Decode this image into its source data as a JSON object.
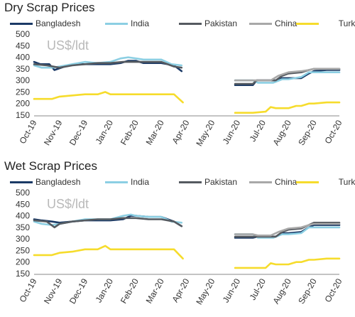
{
  "colors": {
    "Bangladesh": "#1b3a66",
    "India": "#8ccfe3",
    "Pakistan": "#555a60",
    "China": "#a8a8a8",
    "Turkey": "#f6dc2c",
    "axis": "#888888"
  },
  "chart_data": [
    {
      "type": "line",
      "title": "Dry Scrap Prices",
      "unit_label": "US$/ldt",
      "x_ticks": [
        "Oct-19",
        "Nov-19",
        "Dec-19",
        "Jan-20",
        "Feb-20",
        "Mar-20",
        "Apr-20",
        "May-20",
        "Jun-20",
        "Jul-20",
        "Aug-20",
        "Sep-20",
        "Oct-20"
      ],
      "ylim": [
        150,
        500
      ],
      "y_ticks": [
        150,
        200,
        250,
        300,
        350,
        400,
        450,
        500
      ],
      "grid": false,
      "legend": "top",
      "series": [
        {
          "name": "Bangladesh",
          "points": [
            [
              0,
              380
            ],
            [
              0.25,
              370
            ],
            [
              0.6,
              370
            ],
            [
              0.8,
              345
            ],
            [
              1.2,
              360
            ],
            [
              1.6,
              370
            ],
            [
              2,
              370
            ],
            [
              2.5,
              370
            ],
            [
              3,
              370
            ],
            [
              3.4,
              375
            ],
            [
              3.7,
              385
            ],
            [
              4,
              385
            ],
            [
              4.3,
              375
            ],
            [
              4.7,
              375
            ],
            [
              5,
              375
            ],
            [
              5.5,
              365
            ],
            [
              5.8,
              340
            ],
            null,
            [
              7.9,
              280
            ],
            [
              8.6,
              280
            ],
            [
              8.75,
              300
            ],
            [
              9.5,
              300
            ],
            [
              9.75,
              310
            ],
            [
              10,
              310
            ],
            [
              10.5,
              310
            ],
            [
              10.8,
              330
            ],
            [
              11,
              340
            ],
            [
              11.5,
              345
            ],
            [
              12,
              345
            ]
          ]
        },
        {
          "name": "India",
          "points": [
            [
              0,
              365
            ],
            [
              0.3,
              355
            ],
            [
              0.7,
              355
            ],
            [
              1,
              360
            ],
            [
              1.5,
              370
            ],
            [
              2,
              380
            ],
            [
              2.5,
              375
            ],
            [
              3,
              380
            ],
            [
              3.4,
              395
            ],
            [
              3.7,
              400
            ],
            [
              4,
              395
            ],
            [
              4.3,
              390
            ],
            [
              4.7,
              390
            ],
            [
              5,
              390
            ],
            [
              5.4,
              370
            ],
            [
              5.8,
              365
            ],
            null,
            [
              7.9,
              300
            ],
            [
              8.6,
              300
            ],
            [
              8.8,
              290
            ],
            [
              9.4,
              290
            ],
            [
              9.75,
              305
            ],
            [
              10,
              305
            ],
            [
              10.5,
              315
            ],
            [
              10.8,
              335
            ],
            [
              11,
              335
            ],
            [
              11.5,
              335
            ],
            [
              12,
              335
            ]
          ]
        },
        {
          "name": "Pakistan",
          "points": [
            [
              0,
              370
            ],
            [
              0.5,
              365
            ],
            [
              1,
              355
            ],
            [
              1.5,
              365
            ],
            [
              2,
              370
            ],
            [
              2.5,
              375
            ],
            [
              3,
              375
            ],
            [
              3.5,
              380
            ],
            [
              3.8,
              380
            ],
            [
              4,
              380
            ],
            [
              4.5,
              380
            ],
            [
              5,
              380
            ],
            [
              5.5,
              360
            ],
            [
              5.8,
              355
            ],
            null,
            [
              7.9,
              285
            ],
            [
              8.6,
              285
            ],
            [
              8.75,
              300
            ],
            [
              9.5,
              300
            ],
            [
              9.75,
              320
            ],
            [
              10,
              330
            ],
            [
              10.5,
              335
            ],
            [
              10.8,
              345
            ],
            [
              11,
              350
            ],
            [
              11.5,
              350
            ],
            [
              12,
              350
            ]
          ]
        },
        {
          "name": "China",
          "points": [
            [
              7.9,
              300
            ],
            [
              8.6,
              300
            ],
            [
              8.8,
              300
            ],
            [
              9.3,
              300
            ],
            [
              9.6,
              320
            ],
            [
              10,
              335
            ],
            [
              10.5,
              340
            ],
            [
              10.8,
              345
            ],
            [
              11,
              350
            ],
            [
              11.5,
              350
            ],
            [
              12,
              350
            ]
          ]
        },
        {
          "name": "Turkey",
          "points": [
            [
              0,
              220
            ],
            [
              0.7,
              220
            ],
            [
              1,
              230
            ],
            [
              1.5,
              235
            ],
            [
              2,
              240
            ],
            [
              2.5,
              240
            ],
            [
              2.8,
              250
            ],
            [
              3,
              240
            ],
            [
              3.5,
              240
            ],
            [
              4,
              240
            ],
            [
              4.5,
              240
            ],
            [
              5,
              240
            ],
            [
              5.5,
              240
            ],
            [
              5.85,
              205
            ],
            null,
            [
              7.9,
              160
            ],
            [
              8.6,
              160
            ],
            [
              9.1,
              165
            ],
            [
              9.3,
              185
            ],
            [
              9.5,
              180
            ],
            [
              10,
              180
            ],
            [
              10.3,
              190
            ],
            [
              10.5,
              190
            ],
            [
              10.8,
              200
            ],
            [
              11,
              200
            ],
            [
              11.5,
              205
            ],
            [
              12,
              205
            ]
          ]
        }
      ]
    },
    {
      "type": "line",
      "title": "Wet Scrap Prices",
      "unit_label": "US$/ldt",
      "x_ticks": [
        "Oct-19",
        "Nov-19",
        "Dec-19",
        "Jan-20",
        "Feb-20",
        "Mar-20",
        "Apr-20",
        "May-20",
        "Jun-20",
        "Jul-20",
        "Aug-20",
        "Sep-20",
        "Oct-20"
      ],
      "ylim": [
        150,
        500
      ],
      "y_ticks": [
        150,
        200,
        250,
        300,
        350,
        400,
        450,
        500
      ],
      "grid": false,
      "legend": "top",
      "series": [
        {
          "name": "Bangladesh",
          "points": [
            [
              0,
              385
            ],
            [
              0.3,
              380
            ],
            [
              0.7,
              375
            ],
            [
              1,
              370
            ],
            [
              1.5,
              375
            ],
            [
              2,
              380
            ],
            [
              2.5,
              380
            ],
            [
              3,
              380
            ],
            [
              3.5,
              385
            ],
            [
              3.8,
              400
            ],
            [
              4,
              400
            ],
            [
              4.5,
              395
            ],
            [
              5,
              395
            ],
            [
              5.5,
              375
            ],
            [
              5.8,
              355
            ],
            null,
            [
              7.9,
              305
            ],
            [
              8.6,
              305
            ],
            [
              8.8,
              310
            ],
            [
              9.5,
              310
            ],
            [
              9.75,
              325
            ],
            [
              10,
              325
            ],
            [
              10.5,
              330
            ],
            [
              10.8,
              350
            ],
            [
              11,
              360
            ],
            [
              11.5,
              360
            ],
            [
              12,
              360
            ]
          ]
        },
        {
          "name": "India",
          "points": [
            [
              0,
              375
            ],
            [
              0.3,
              365
            ],
            [
              0.7,
              360
            ],
            [
              1,
              365
            ],
            [
              1.5,
              375
            ],
            [
              2,
              385
            ],
            [
              2.5,
              385
            ],
            [
              3,
              385
            ],
            [
              3.5,
              400
            ],
            [
              3.8,
              405
            ],
            [
              4,
              400
            ],
            [
              4.5,
              395
            ],
            [
              5,
              395
            ],
            [
              5.4,
              375
            ],
            [
              5.8,
              370
            ],
            null,
            [
              7.9,
              320
            ],
            [
              8.6,
              320
            ],
            [
              8.8,
              305
            ],
            [
              9.4,
              305
            ],
            [
              9.75,
              320
            ],
            [
              10,
              320
            ],
            [
              10.5,
              325
            ],
            [
              10.8,
              350
            ],
            [
              11,
              350
            ],
            [
              11.5,
              350
            ],
            [
              12,
              350
            ]
          ]
        },
        {
          "name": "Pakistan",
          "points": [
            [
              0,
              380
            ],
            [
              0.5,
              375
            ],
            [
              0.8,
              350
            ],
            [
              1,
              365
            ],
            [
              1.5,
              375
            ],
            [
              2,
              380
            ],
            [
              2.5,
              385
            ],
            [
              3,
              385
            ],
            [
              3.5,
              390
            ],
            [
              3.8,
              390
            ],
            [
              4,
              390
            ],
            [
              4.5,
              385
            ],
            [
              5,
              385
            ],
            [
              5.5,
              375
            ],
            [
              5.8,
              355
            ],
            null,
            [
              7.9,
              310
            ],
            [
              8.6,
              310
            ],
            [
              8.75,
              310
            ],
            [
              9.5,
              310
            ],
            [
              9.75,
              330
            ],
            [
              10,
              340
            ],
            [
              10.5,
              345
            ],
            [
              10.8,
              360
            ],
            [
              11,
              370
            ],
            [
              11.5,
              370
            ],
            [
              12,
              370
            ]
          ]
        },
        {
          "name": "China",
          "points": [
            [
              7.9,
              320
            ],
            [
              8.6,
              320
            ],
            [
              8.8,
              315
            ],
            [
              9.3,
              315
            ],
            [
              9.6,
              330
            ],
            [
              10,
              345
            ],
            [
              10.5,
              350
            ],
            [
              10.8,
              360
            ],
            [
              11,
              365
            ],
            [
              11.5,
              365
            ],
            [
              12,
              365
            ]
          ]
        },
        {
          "name": "Turkey",
          "points": [
            [
              0,
              230
            ],
            [
              0.7,
              230
            ],
            [
              1,
              240
            ],
            [
              1.5,
              245
            ],
            [
              2,
              255
            ],
            [
              2.5,
              255
            ],
            [
              2.8,
              270
            ],
            [
              3,
              255
            ],
            [
              3.5,
              255
            ],
            [
              4,
              255
            ],
            [
              4.5,
              255
            ],
            [
              5,
              255
            ],
            [
              5.5,
              255
            ],
            [
              5.85,
              215
            ],
            null,
            [
              7.9,
              175
            ],
            [
              8.6,
              175
            ],
            [
              9.1,
              175
            ],
            [
              9.3,
              195
            ],
            [
              9.5,
              190
            ],
            [
              10,
              190
            ],
            [
              10.3,
              200
            ],
            [
              10.5,
              200
            ],
            [
              10.8,
              210
            ],
            [
              11,
              210
            ],
            [
              11.5,
              215
            ],
            [
              12,
              215
            ]
          ]
        }
      ]
    }
  ]
}
